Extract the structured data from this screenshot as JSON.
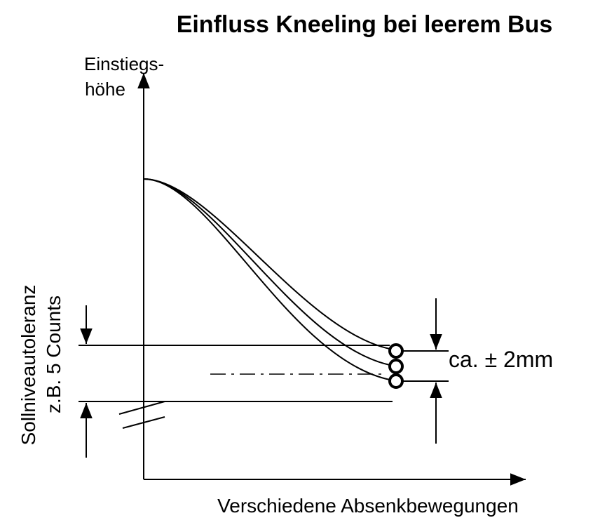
{
  "title": "Einfluss Kneeling bei leerem Bus",
  "y_axis_label": [
    "Einstiegs-",
    "höhe"
  ],
  "tolerance_label": [
    "Sollniveautoleranz",
    "z.B. 5 Counts"
  ],
  "delta_label": "ca. ± 2mm",
  "x_axis_label": "Verschiedene Absenkbewegungen"
}
